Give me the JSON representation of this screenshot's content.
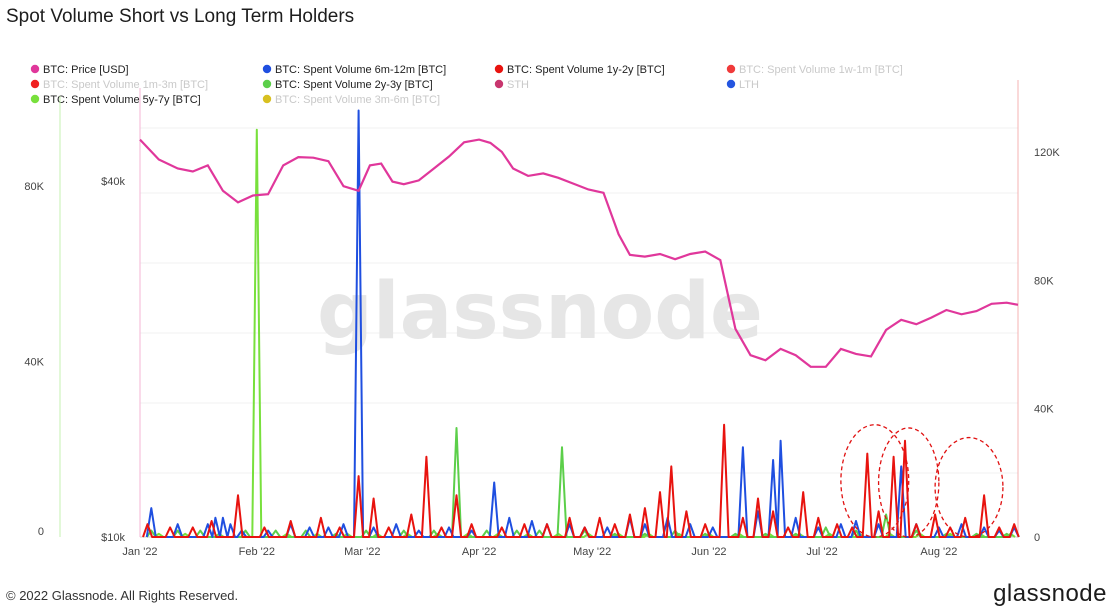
{
  "title": "Spot Volume Short vs Long Term Holders",
  "footer": {
    "copyright": "© 2022 Glassnode. All Rights Reserved.",
    "logo": "glassnode"
  },
  "watermark": "glassnode",
  "chart_data": {
    "type": "line",
    "title": "Spot Volume Short vs Long Term Holders",
    "x_ticks": [
      "Jan '22",
      "Feb '22",
      "Mar '22",
      "Apr '22",
      "May '22",
      "Jun '22",
      "Jul '22",
      "Aug '22"
    ],
    "x_tick_days": [
      0,
      31,
      59,
      90,
      120,
      151,
      181,
      212
    ],
    "x_max_day": 233,
    "left_outer_axis": {
      "ticks": [
        "0",
        "40K",
        "80K"
      ],
      "tick_values": [
        0,
        40000,
        80000
      ],
      "range": [
        0,
        100000
      ]
    },
    "price_axis": {
      "ticks": [
        "$10k",
        "$40k"
      ],
      "tick_values": [
        10000,
        40000
      ],
      "scale": "log"
    },
    "right_axis": {
      "ticks": [
        "0",
        "40K",
        "80K",
        "120K"
      ],
      "tick_values": [
        0,
        40000,
        80000,
        120000
      ],
      "range": [
        0,
        140000
      ]
    },
    "legend": [
      {
        "label": "BTC: Price [USD]",
        "color": "#e0379b",
        "active": true
      },
      {
        "label": "BTC: Spent Volume 6m-12m [BTC]",
        "color": "#1f4fe0",
        "active": true
      },
      {
        "label": "BTC: Spent Volume 1y-2y [BTC]",
        "color": "#e8130f",
        "active": true
      },
      {
        "label": "BTC: Spent Volume 1w-1m [BTC]",
        "color": "#f03a3a",
        "active": false
      },
      {
        "label": "BTC: Spent Volume 1m-3m [BTC]",
        "color": "#f02020",
        "active": false
      },
      {
        "label": "BTC: Spent Volume 2y-3y [BTC]",
        "color": "#5ccf4a",
        "active": true
      },
      {
        "label": "STH",
        "color": "#c8366e",
        "active": false
      },
      {
        "label": "LTH",
        "color": "#2455e0",
        "active": false
      },
      {
        "label": "BTC: Spent Volume 5y-7y [BTC]",
        "color": "#78e03c",
        "active": true
      },
      {
        "label": "BTC: Spent Volume 3m-6m [BTC]",
        "color": "#d8c020",
        "active": false
      }
    ],
    "price": {
      "name": "BTC: Price [USD]",
      "points": [
        [
          0,
          47000
        ],
        [
          5,
          43500
        ],
        [
          10,
          42000
        ],
        [
          14,
          41500
        ],
        [
          18,
          42500
        ],
        [
          22,
          38500
        ],
        [
          26,
          36800
        ],
        [
          30,
          37800
        ],
        [
          34,
          38000
        ],
        [
          38,
          42500
        ],
        [
          42,
          43900
        ],
        [
          46,
          43800
        ],
        [
          50,
          43200
        ],
        [
          54,
          39200
        ],
        [
          58,
          38500
        ],
        [
          61,
          42500
        ],
        [
          64,
          42800
        ],
        [
          67,
          39900
        ],
        [
          70,
          39500
        ],
        [
          74,
          40100
        ],
        [
          78,
          42000
        ],
        [
          82,
          44000
        ],
        [
          86,
          46500
        ],
        [
          90,
          47000
        ],
        [
          93,
          46400
        ],
        [
          96,
          44800
        ],
        [
          99,
          42000
        ],
        [
          103,
          40800
        ],
        [
          107,
          41200
        ],
        [
          111,
          40500
        ],
        [
          115,
          39600
        ],
        [
          119,
          38700
        ],
        [
          123,
          38200
        ],
        [
          127,
          32500
        ],
        [
          130,
          30000
        ],
        [
          134,
          29800
        ],
        [
          138,
          30100
        ],
        [
          142,
          29500
        ],
        [
          146,
          30100
        ],
        [
          150,
          30400
        ],
        [
          154,
          29400
        ],
        [
          158,
          22500
        ],
        [
          162,
          20300
        ],
        [
          166,
          19900
        ],
        [
          170,
          20800
        ],
        [
          174,
          20300
        ],
        [
          178,
          19400
        ],
        [
          182,
          19400
        ],
        [
          186,
          20800
        ],
        [
          190,
          20400
        ],
        [
          194,
          20200
        ],
        [
          198,
          22400
        ],
        [
          202,
          23300
        ],
        [
          206,
          22900
        ],
        [
          210,
          23500
        ],
        [
          214,
          24200
        ],
        [
          218,
          23800
        ],
        [
          222,
          24100
        ],
        [
          226,
          24800
        ],
        [
          230,
          24900
        ],
        [
          233,
          24700
        ]
      ]
    },
    "series": [
      {
        "name": "BTC: Spent Volume 6m-12m [BTC]",
        "color": "#1f4fe0",
        "spikes": [
          [
            3,
            9000
          ],
          [
            10,
            4000
          ],
          [
            18,
            4000
          ],
          [
            20,
            6000
          ],
          [
            22,
            6000
          ],
          [
            24,
            4000
          ],
          [
            27,
            2000
          ],
          [
            34,
            2000
          ],
          [
            40,
            4000
          ],
          [
            45,
            3000
          ],
          [
            50,
            3000
          ],
          [
            54,
            4000
          ],
          [
            58,
            133000
          ],
          [
            62,
            3000
          ],
          [
            68,
            4000
          ],
          [
            74,
            2000
          ],
          [
            82,
            3000
          ],
          [
            88,
            2000
          ],
          [
            94,
            17000
          ],
          [
            98,
            6000
          ],
          [
            104,
            5000
          ],
          [
            108,
            4000
          ],
          [
            114,
            4000
          ],
          [
            118,
            3000
          ],
          [
            124,
            3000
          ],
          [
            130,
            6000
          ],
          [
            134,
            4000
          ],
          [
            140,
            6000
          ],
          [
            146,
            4000
          ],
          [
            152,
            3000
          ],
          [
            160,
            28000
          ],
          [
            164,
            8000
          ],
          [
            168,
            24000
          ],
          [
            170,
            30000
          ],
          [
            174,
            6000
          ],
          [
            180,
            3000
          ],
          [
            186,
            4000
          ],
          [
            190,
            5000
          ],
          [
            196,
            4000
          ],
          [
            202,
            22000
          ],
          [
            206,
            4000
          ],
          [
            212,
            3000
          ],
          [
            218,
            4000
          ],
          [
            224,
            3000
          ],
          [
            228,
            2000
          ],
          [
            232,
            3000
          ]
        ]
      },
      {
        "name": "BTC: Spent Volume 1y-2y [BTC]",
        "color": "#e8130f",
        "spikes": [
          [
            2,
            4000
          ],
          [
            8,
            3000
          ],
          [
            14,
            3000
          ],
          [
            19,
            5000
          ],
          [
            26,
            13000
          ],
          [
            33,
            3000
          ],
          [
            40,
            5000
          ],
          [
            48,
            6000
          ],
          [
            53,
            3000
          ],
          [
            58,
            19000
          ],
          [
            62,
            12000
          ],
          [
            66,
            3000
          ],
          [
            72,
            7000
          ],
          [
            76,
            25000
          ],
          [
            80,
            3000
          ],
          [
            84,
            13000
          ],
          [
            88,
            4000
          ],
          [
            96,
            3000
          ],
          [
            102,
            4000
          ],
          [
            108,
            4000
          ],
          [
            114,
            6000
          ],
          [
            118,
            3000
          ],
          [
            122,
            6000
          ],
          [
            126,
            4000
          ],
          [
            130,
            7000
          ],
          [
            134,
            9000
          ],
          [
            138,
            14000
          ],
          [
            141,
            22000
          ],
          [
            145,
            8000
          ],
          [
            150,
            4000
          ],
          [
            155,
            35000
          ],
          [
            160,
            6000
          ],
          [
            164,
            12000
          ],
          [
            168,
            8000
          ],
          [
            172,
            3000
          ],
          [
            176,
            14000
          ],
          [
            180,
            6000
          ],
          [
            185,
            4000
          ],
          [
            189,
            3000
          ],
          [
            193,
            26000
          ],
          [
            196,
            8000
          ],
          [
            200,
            25000
          ],
          [
            203,
            30000
          ],
          [
            206,
            4000
          ],
          [
            211,
            7000
          ],
          [
            215,
            3000
          ],
          [
            219,
            6000
          ],
          [
            224,
            13000
          ],
          [
            228,
            3000
          ],
          [
            232,
            4000
          ]
        ]
      },
      {
        "name": "BTC: Spent Volume 2y-3y [BTC]",
        "color": "#5ccf4a",
        "spikes": [
          [
            3,
            2000
          ],
          [
            10,
            2000
          ],
          [
            16,
            2000
          ],
          [
            28,
            2000
          ],
          [
            36,
            2000
          ],
          [
            44,
            2000
          ],
          [
            52,
            1000
          ],
          [
            60,
            2000
          ],
          [
            70,
            2000
          ],
          [
            78,
            2000
          ],
          [
            84,
            34000
          ],
          [
            92,
            2000
          ],
          [
            100,
            2000
          ],
          [
            106,
            2000
          ],
          [
            112,
            28000
          ],
          [
            118,
            2000
          ],
          [
            126,
            1000
          ],
          [
            134,
            1000
          ],
          [
            142,
            2000
          ],
          [
            150,
            1000
          ],
          [
            158,
            1000
          ],
          [
            166,
            1000
          ],
          [
            174,
            1000
          ],
          [
            182,
            3000
          ],
          [
            190,
            2000
          ],
          [
            198,
            7000
          ],
          [
            206,
            2000
          ],
          [
            214,
            1000
          ],
          [
            222,
            1000
          ],
          [
            230,
            1000
          ]
        ]
      },
      {
        "name": "BTC: Spent Volume 5y-7y [BTC]",
        "color": "#78e03c",
        "spikes": [
          [
            5,
            1000
          ],
          [
            12,
            1000
          ],
          [
            21,
            1000
          ],
          [
            31,
            127000
          ],
          [
            39,
            1000
          ],
          [
            47,
            1000
          ],
          [
            55,
            1000
          ],
          [
            63,
            1000
          ],
          [
            71,
            1000
          ],
          [
            79,
            1000
          ],
          [
            87,
            1000
          ],
          [
            95,
            1000
          ],
          [
            103,
            1000
          ],
          [
            111,
            1000
          ],
          [
            119,
            1000
          ],
          [
            127,
            1000
          ],
          [
            135,
            1000
          ],
          [
            143,
            1000
          ],
          [
            151,
            1000
          ],
          [
            159,
            1000
          ],
          [
            167,
            1000
          ],
          [
            175,
            1000
          ],
          [
            183,
            1000
          ],
          [
            191,
            1000
          ],
          [
            199,
            1000
          ],
          [
            207,
            1000
          ],
          [
            215,
            1000
          ],
          [
            223,
            1000
          ],
          [
            231,
            1000
          ]
        ]
      }
    ],
    "annotations": [
      {
        "type": "dashed-ellipse",
        "color": "#e01010",
        "x_range": [
          186,
          204
        ],
        "y_range": [
          0,
          35000
        ]
      },
      {
        "type": "dashed-ellipse",
        "color": "#e01010",
        "x_range": [
          196,
          212
        ],
        "y_range": [
          0,
          34000
        ]
      },
      {
        "type": "dashed-ellipse",
        "color": "#e01010",
        "x_range": [
          211,
          229
        ],
        "y_range": [
          0,
          31000
        ]
      }
    ]
  }
}
